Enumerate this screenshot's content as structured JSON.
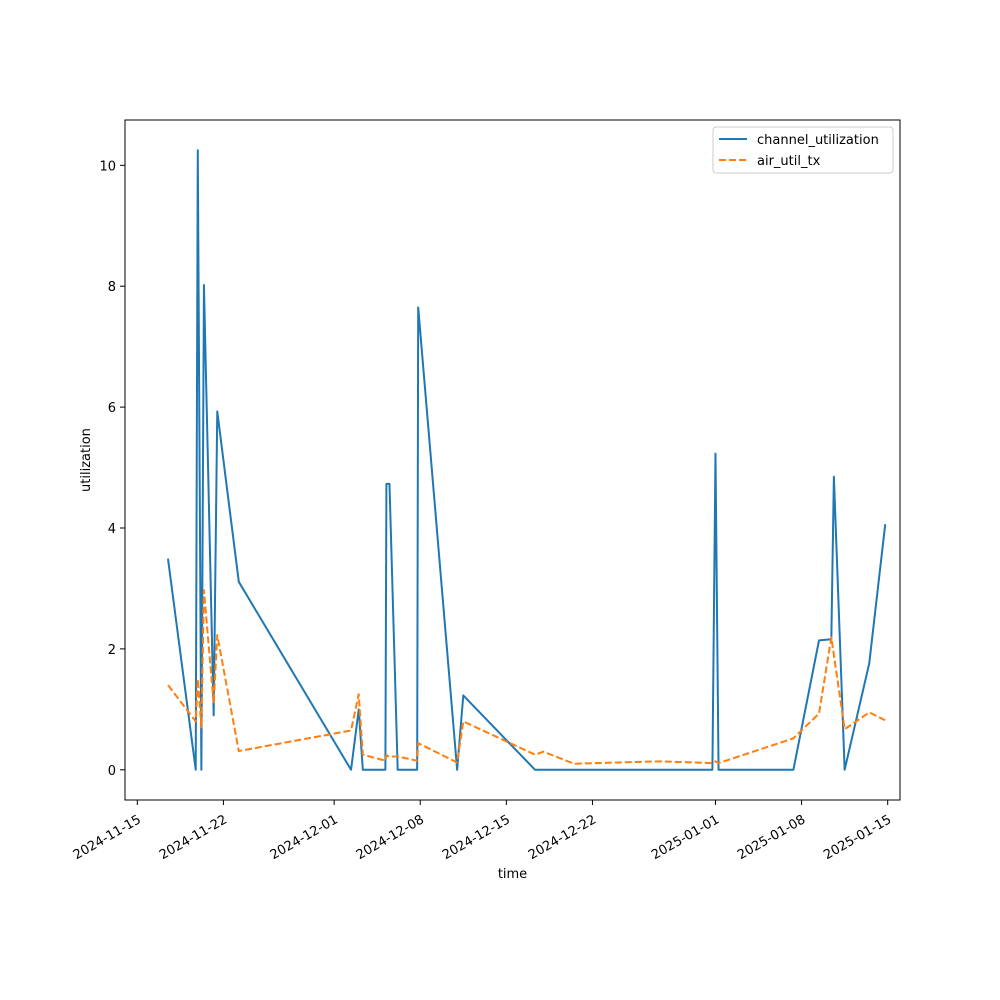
{
  "chart_data": {
    "type": "line",
    "title": "",
    "xlabel": "time",
    "ylabel": "utilization",
    "x_type": "date",
    "xlim": [
      "2024-11-14",
      "2025-01-16"
    ],
    "ylim": [
      -0.5,
      10.75
    ],
    "x_ticks": [
      "2024-11-15",
      "2024-11-22",
      "2024-12-01",
      "2024-12-08",
      "2024-12-15",
      "2024-12-22",
      "2025-01-01",
      "2025-01-08",
      "2025-01-15"
    ],
    "y_ticks": [
      0,
      2,
      4,
      6,
      8,
      10
    ],
    "grid": false,
    "legend_position": "top-right",
    "series": [
      {
        "name": "channel_utilization",
        "color": "#1f77b4",
        "style": "solid",
        "points": [
          {
            "x": "2024-11-17T12:00",
            "y": 3.48
          },
          {
            "x": "2024-11-19T18:00",
            "y": 0.0
          },
          {
            "x": "2024-11-19T22:00",
            "y": 10.25
          },
          {
            "x": "2024-11-20T05:00",
            "y": 0.0
          },
          {
            "x": "2024-11-20T10:00",
            "y": 8.02
          },
          {
            "x": "2024-11-21T05:00",
            "y": 0.9
          },
          {
            "x": "2024-11-21T12:00",
            "y": 5.93
          },
          {
            "x": "2024-11-23T06:00",
            "y": 3.11
          },
          {
            "x": "2024-12-02T09:00",
            "y": 0.0
          },
          {
            "x": "2024-12-03T00:00",
            "y": 1.0
          },
          {
            "x": "2024-12-03T08:00",
            "y": 0.0
          },
          {
            "x": "2024-12-05T04:00",
            "y": 0.0
          },
          {
            "x": "2024-12-05T06:00",
            "y": 4.73
          },
          {
            "x": "2024-12-05T12:00",
            "y": 4.73
          },
          {
            "x": "2024-12-06T04:00",
            "y": 0.0
          },
          {
            "x": "2024-12-07T18:00",
            "y": 0.0
          },
          {
            "x": "2024-12-07T20:00",
            "y": 7.65
          },
          {
            "x": "2024-12-11T00:00",
            "y": 0.0
          },
          {
            "x": "2024-12-11T12:00",
            "y": 1.23
          },
          {
            "x": "2024-12-17T08:00",
            "y": 0.0
          },
          {
            "x": "2024-12-31T18:00",
            "y": 0.0
          },
          {
            "x": "2025-01-01T00:00",
            "y": 5.23
          },
          {
            "x": "2025-01-01T06:00",
            "y": 0.0
          },
          {
            "x": "2025-01-07T08:00",
            "y": 0.0
          },
          {
            "x": "2025-01-09T10:00",
            "y": 2.14
          },
          {
            "x": "2025-01-10T10:00",
            "y": 2.16
          },
          {
            "x": "2025-01-10T15:00",
            "y": 4.85
          },
          {
            "x": "2025-01-11T12:00",
            "y": 0.0
          },
          {
            "x": "2025-01-13T12:00",
            "y": 1.76
          },
          {
            "x": "2025-01-14T19:00",
            "y": 4.05
          }
        ]
      },
      {
        "name": "air_util_tx",
        "color": "#ff7f0e",
        "style": "dashed",
        "points": [
          {
            "x": "2024-11-17T12:00",
            "y": 1.4
          },
          {
            "x": "2024-11-19T18:00",
            "y": 0.8
          },
          {
            "x": "2024-11-19T22:00",
            "y": 1.5
          },
          {
            "x": "2024-11-20T05:00",
            "y": 0.7
          },
          {
            "x": "2024-11-20T10:00",
            "y": 2.97
          },
          {
            "x": "2024-11-21T05:00",
            "y": 1.1
          },
          {
            "x": "2024-11-21T12:00",
            "y": 2.23
          },
          {
            "x": "2024-11-23T06:00",
            "y": 0.31
          },
          {
            "x": "2024-12-02T09:00",
            "y": 0.65
          },
          {
            "x": "2024-12-03T00:00",
            "y": 1.25
          },
          {
            "x": "2024-12-03T08:00",
            "y": 0.25
          },
          {
            "x": "2024-12-05T04:00",
            "y": 0.15
          },
          {
            "x": "2024-12-05T06:00",
            "y": 0.24
          },
          {
            "x": "2024-12-05T12:00",
            "y": 0.22
          },
          {
            "x": "2024-12-06T04:00",
            "y": 0.22
          },
          {
            "x": "2024-12-07T18:00",
            "y": 0.15
          },
          {
            "x": "2024-12-07T20:00",
            "y": 0.44
          },
          {
            "x": "2024-12-11T00:00",
            "y": 0.12
          },
          {
            "x": "2024-12-11T12:00",
            "y": 0.8
          },
          {
            "x": "2024-12-17T08:00",
            "y": 0.25
          },
          {
            "x": "2024-12-18T00:00",
            "y": 0.3
          },
          {
            "x": "2024-12-20T12:00",
            "y": 0.1
          },
          {
            "x": "2024-12-27T12:00",
            "y": 0.14
          },
          {
            "x": "2024-12-31T18:00",
            "y": 0.11
          },
          {
            "x": "2025-01-01T00:00",
            "y": 0.14
          },
          {
            "x": "2025-01-01T06:00",
            "y": 0.11
          },
          {
            "x": "2025-01-07T08:00",
            "y": 0.52
          },
          {
            "x": "2025-01-09T10:00",
            "y": 0.93
          },
          {
            "x": "2025-01-10T10:00",
            "y": 2.19
          },
          {
            "x": "2025-01-11T12:00",
            "y": 0.67
          },
          {
            "x": "2025-01-13T12:00",
            "y": 0.95
          },
          {
            "x": "2025-01-14T19:00",
            "y": 0.82
          }
        ]
      }
    ]
  }
}
